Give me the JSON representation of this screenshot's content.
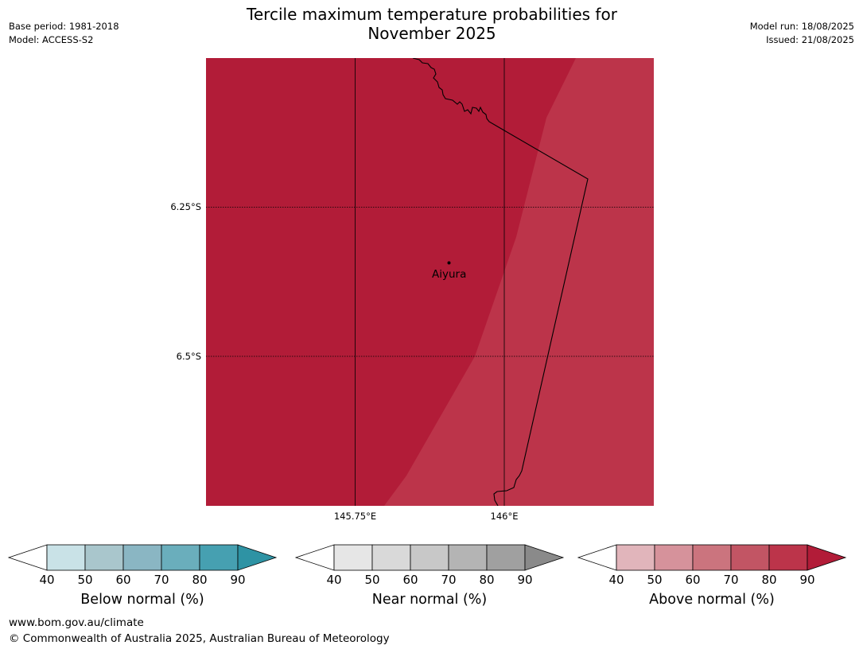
{
  "header": {
    "title_line1": "Tercile maximum temperature probabilities for",
    "title_line2": "November 2025",
    "base_period": "Base period: 1981-2018",
    "model": "Model: ACCESS-S2",
    "model_run": "Model run: 18/08/2025",
    "issued": "Issued: 21/08/2025"
  },
  "map": {
    "gridlines": {
      "latitudes": [
        "6.25°S",
        "6.5°S"
      ],
      "longitudes": [
        "145.75°E",
        "146°E"
      ]
    },
    "place": {
      "name": "Aiyura"
    },
    "colors": {
      "region_dark": "#b21c38",
      "region_light": "#bc344a",
      "border": "#000000"
    }
  },
  "colorbars": [
    {
      "label": "Below normal (%)",
      "ticks": [
        "40",
        "50",
        "60",
        "70",
        "80",
        "90"
      ],
      "colors": [
        "#ffffff",
        "#c9e2e7",
        "#a9c6cc",
        "#8ab6c3",
        "#6aaebc",
        "#46a0b1",
        "#2e93a4"
      ]
    },
    {
      "label": "Near normal (%)",
      "ticks": [
        "40",
        "50",
        "60",
        "70",
        "80",
        "90"
      ],
      "colors": [
        "#ffffff",
        "#e6e6e6",
        "#d9d9d9",
        "#c8c8c8",
        "#b4b4b4",
        "#a0a0a0",
        "#8a8a8a"
      ]
    },
    {
      "label": "Above normal (%)",
      "ticks": [
        "40",
        "50",
        "60",
        "70",
        "80",
        "90"
      ],
      "colors": [
        "#ffffff",
        "#e1b5bb",
        "#d6929b",
        "#cb747e",
        "#c25564",
        "#bc344a",
        "#b21c38"
      ]
    }
  ],
  "footer": {
    "url": "www.bom.gov.au/climate",
    "copyright": "© Commonwealth of Australia 2025, Australian Bureau of Meteorology"
  }
}
